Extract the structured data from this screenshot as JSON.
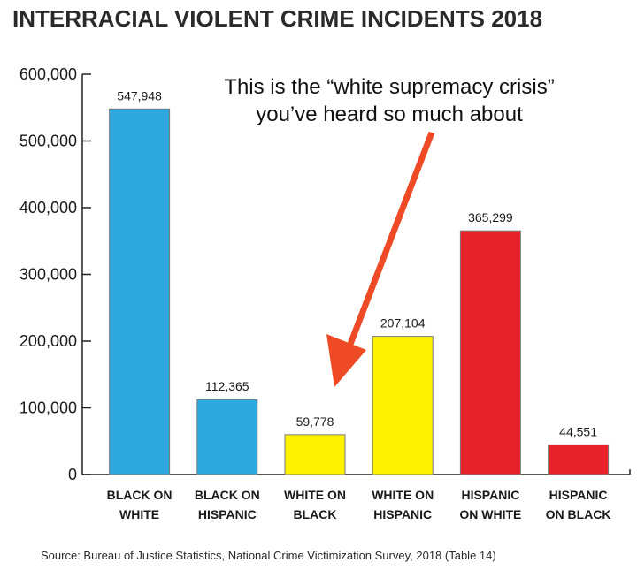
{
  "chart_data": {
    "type": "bar",
    "title": "INTERRACIAL VIOLENT CRIME INCIDENTS 2018",
    "categories": [
      [
        "BLACK ON",
        "WHITE"
      ],
      [
        "BLACK ON",
        "HISPANIC"
      ],
      [
        "WHITE ON",
        "BLACK"
      ],
      [
        "WHITE ON",
        "HISPANIC"
      ],
      [
        "HISPANIC",
        "ON WHITE"
      ],
      [
        "HISPANIC",
        "ON BLACK"
      ]
    ],
    "values": [
      547948,
      112365,
      59778,
      207104,
      365299,
      44551
    ],
    "value_labels": [
      "547,948",
      "112,365",
      "59,778",
      "207,104",
      "365,299",
      "44,551"
    ],
    "bar_colors": [
      "#2ea9e0",
      "#2ea9e0",
      "#fff200",
      "#fff200",
      "#e8232a",
      "#e8232a"
    ],
    "ylim": [
      0,
      600000
    ],
    "yticks": [
      0,
      100000,
      200000,
      300000,
      400000,
      500000,
      600000
    ],
    "ytick_labels": [
      "0",
      "100,000",
      "200,000",
      "300,000",
      "400,000",
      "500,000",
      "600,000"
    ],
    "xlabel": "",
    "ylabel": "",
    "grid": false,
    "annotation": {
      "lines": [
        "This is the “white supremacy crisis”",
        "you’ve heard so much about"
      ],
      "arrow_color": "#ee4a26"
    },
    "source": "Source: Bureau of Justice Statistics, National Crime Victimization Survey, 2018 (Table 14)"
  }
}
